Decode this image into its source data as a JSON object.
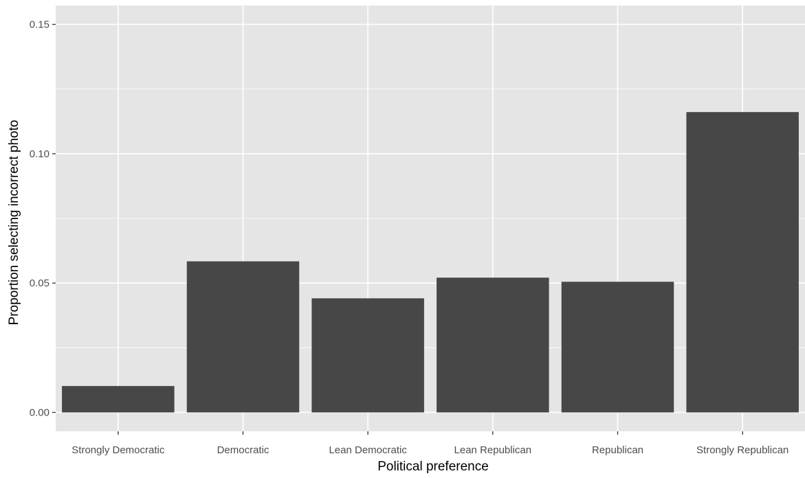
{
  "chart_data": {
    "type": "bar",
    "title": "",
    "xlabel": "Political preference",
    "ylabel": "Proportion selecting incorrect photo",
    "categories": [
      "Strongly Democratic",
      "Democratic",
      "Lean Democratic",
      "Lean Republican",
      "Republican",
      "Strongly Republican"
    ],
    "values": [
      0.0102,
      0.0584,
      0.0441,
      0.0521,
      0.0505,
      0.1161
    ],
    "ylim": [
      -0.0073,
      0.1573
    ],
    "yticks": [
      0.0,
      0.05,
      0.1,
      0.15
    ],
    "ytick_labels": [
      "0.00",
      "0.05",
      "0.10",
      "0.15"
    ],
    "grid": true,
    "legend": "none",
    "colors": {
      "bar": "#474747",
      "panel": "#e5e5e5",
      "grid": "#ffffff",
      "text": "#4d4d4d",
      "axis_title": "#000000"
    }
  }
}
